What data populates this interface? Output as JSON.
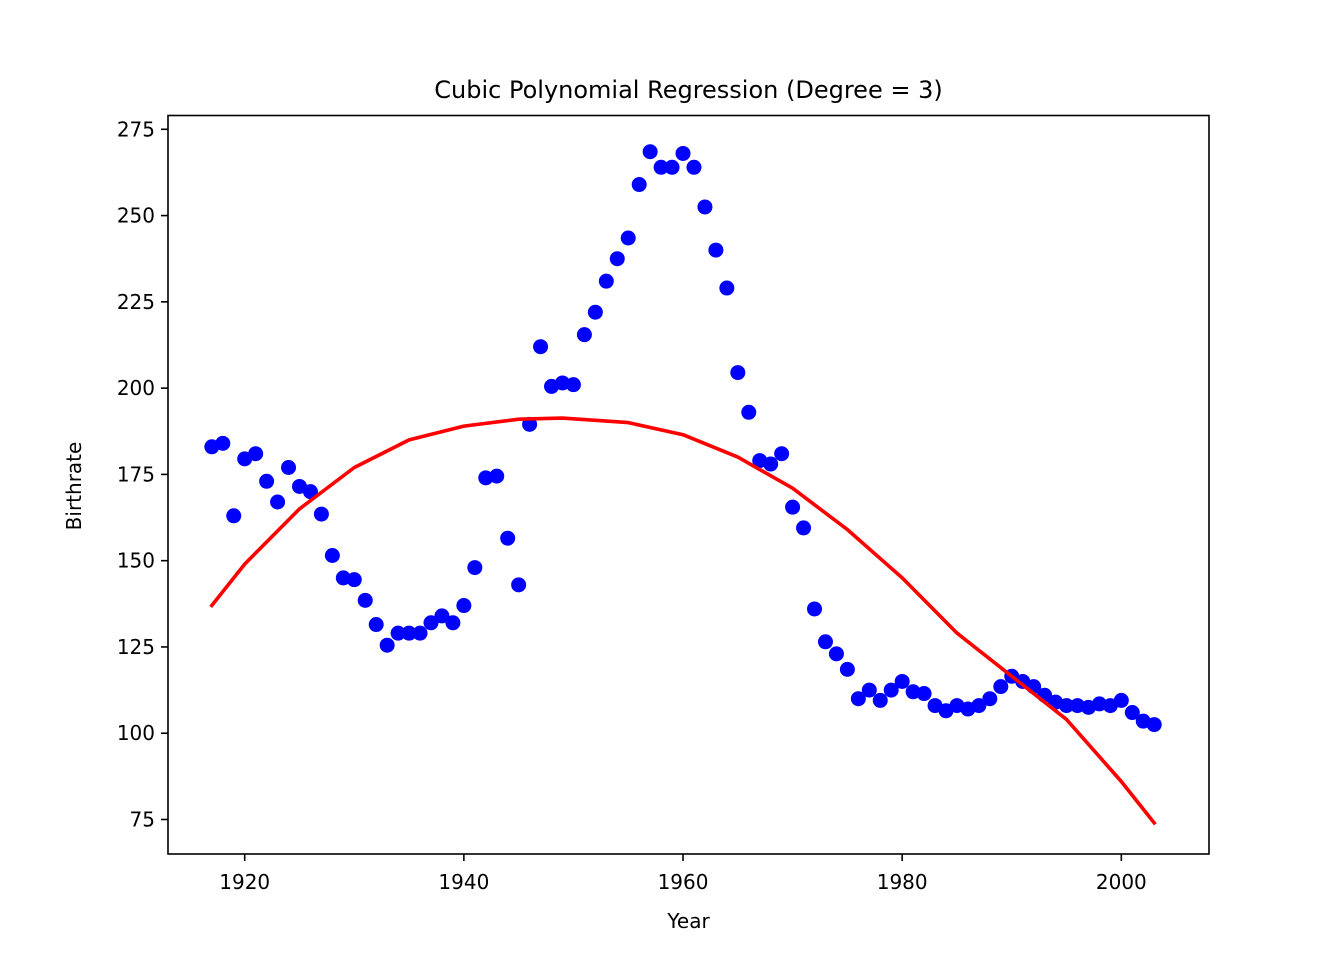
{
  "chart_data": {
    "type": "scatter",
    "title": "Cubic Polynomial Regression (Degree = 3)",
    "xlabel": "Year",
    "ylabel": "Birthrate",
    "xlim": [
      1913,
      2008
    ],
    "ylim": [
      65,
      279
    ],
    "x_ticks": [
      1920,
      1940,
      1960,
      1980,
      2000
    ],
    "y_ticks": [
      75,
      100,
      125,
      150,
      175,
      200,
      225,
      250,
      275
    ],
    "grid": false,
    "colors": {
      "points": "#0000ff",
      "fit": "#ff0000"
    },
    "series": [
      {
        "kind": "scatter",
        "points": [
          [
            1917,
            183
          ],
          [
            1918,
            184
          ],
          [
            1919,
            163
          ],
          [
            1920,
            179.5
          ],
          [
            1921,
            181
          ],
          [
            1922,
            173
          ],
          [
            1923,
            167
          ],
          [
            1924,
            177
          ],
          [
            1925,
            171.5
          ],
          [
            1926,
            170
          ],
          [
            1927,
            163.5
          ],
          [
            1928,
            151.5
          ],
          [
            1929,
            145
          ],
          [
            1930,
            144.5
          ],
          [
            1931,
            138.5
          ],
          [
            1932,
            131.5
          ],
          [
            1933,
            125.5
          ],
          [
            1934,
            129
          ],
          [
            1935,
            129
          ],
          [
            1936,
            129
          ],
          [
            1937,
            132
          ],
          [
            1938,
            134
          ],
          [
            1939,
            132
          ],
          [
            1940,
            137
          ],
          [
            1941,
            148
          ],
          [
            1942,
            174
          ],
          [
            1943,
            174.5
          ],
          [
            1944,
            156.5
          ],
          [
            1945,
            143
          ],
          [
            1946,
            189.5
          ],
          [
            1947,
            212
          ],
          [
            1948,
            200.5
          ],
          [
            1949,
            201.5
          ],
          [
            1950,
            201
          ],
          [
            1951,
            215.5
          ],
          [
            1952,
            222
          ],
          [
            1953,
            231
          ],
          [
            1954,
            237.5
          ],
          [
            1955,
            243.5
          ],
          [
            1956,
            259
          ],
          [
            1957,
            268.5
          ],
          [
            1958,
            264
          ],
          [
            1959,
            264
          ],
          [
            1960,
            268
          ],
          [
            1961,
            264
          ],
          [
            1962,
            252.5
          ],
          [
            1963,
            240
          ],
          [
            1964,
            229
          ],
          [
            1965,
            204.5
          ],
          [
            1966,
            193
          ],
          [
            1967,
            179
          ],
          [
            1968,
            178
          ],
          [
            1969,
            181
          ],
          [
            1970,
            165.5
          ],
          [
            1971,
            159.5
          ],
          [
            1972,
            136
          ],
          [
            1973,
            126.5
          ],
          [
            1974,
            123
          ],
          [
            1975,
            118.5
          ],
          [
            1976,
            110
          ],
          [
            1977,
            112.5
          ],
          [
            1978,
            109.5
          ],
          [
            1979,
            112.5
          ],
          [
            1980,
            115
          ],
          [
            1981,
            112
          ],
          [
            1982,
            111.5
          ],
          [
            1983,
            108
          ],
          [
            1984,
            106.5
          ],
          [
            1985,
            108
          ],
          [
            1986,
            107
          ],
          [
            1987,
            108
          ],
          [
            1988,
            110
          ],
          [
            1989,
            113.5
          ],
          [
            1990,
            116.5
          ],
          [
            1991,
            115
          ],
          [
            1992,
            113.5
          ],
          [
            1993,
            111
          ],
          [
            1994,
            109
          ],
          [
            1995,
            108
          ],
          [
            1996,
            108
          ],
          [
            1997,
            107.5
          ],
          [
            1998,
            108.5
          ],
          [
            1999,
            108
          ],
          [
            2000,
            109.5
          ],
          [
            2001,
            106
          ],
          [
            2002,
            103.5
          ],
          [
            2003,
            102.5
          ]
        ]
      },
      {
        "kind": "line",
        "points": [
          [
            1917,
            137
          ],
          [
            1920,
            149
          ],
          [
            1925,
            165
          ],
          [
            1930,
            177
          ],
          [
            1935,
            185
          ],
          [
            1940,
            189
          ],
          [
            1945,
            191
          ],
          [
            1949,
            191.3
          ],
          [
            1955,
            190
          ],
          [
            1960,
            186.5
          ],
          [
            1965,
            180
          ],
          [
            1970,
            171
          ],
          [
            1975,
            159
          ],
          [
            1980,
            145
          ],
          [
            1985,
            129
          ],
          [
            1990,
            116.5
          ],
          [
            1995,
            104
          ],
          [
            2000,
            86
          ],
          [
            2003,
            74
          ]
        ]
      }
    ]
  }
}
